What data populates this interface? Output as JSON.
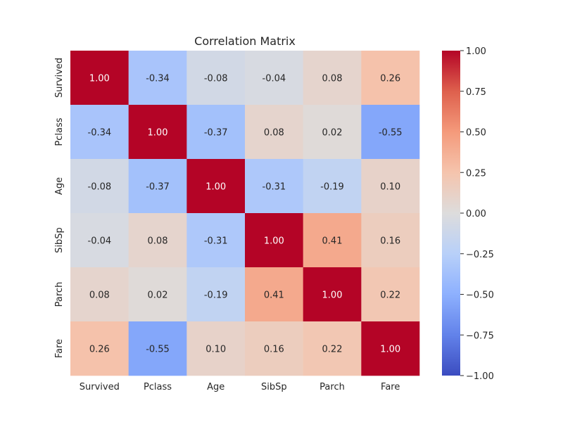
{
  "chart_data": {
    "type": "heatmap",
    "title": "Correlation Matrix",
    "x_labels": [
      "Survived",
      "Pclass",
      "Age",
      "SibSp",
      "Parch",
      "Fare"
    ],
    "y_labels": [
      "Survived",
      "Pclass",
      "Age",
      "SibSp",
      "Parch",
      "Fare"
    ],
    "values": [
      [
        1.0,
        -0.34,
        -0.08,
        -0.04,
        0.08,
        0.26
      ],
      [
        -0.34,
        1.0,
        -0.37,
        0.08,
        0.02,
        -0.55
      ],
      [
        -0.08,
        -0.37,
        1.0,
        -0.31,
        -0.19,
        0.1
      ],
      [
        -0.04,
        0.08,
        -0.31,
        1.0,
        0.41,
        0.16
      ],
      [
        0.08,
        0.02,
        -0.19,
        0.41,
        1.0,
        0.22
      ],
      [
        0.26,
        -0.55,
        0.1,
        0.16,
        0.22,
        1.0
      ]
    ],
    "value_labels": [
      [
        "1.00",
        "-0.34",
        "-0.08",
        "-0.04",
        "0.08",
        "0.26"
      ],
      [
        "-0.34",
        "1.00",
        "-0.37",
        "0.08",
        "0.02",
        "-0.55"
      ],
      [
        "-0.08",
        "-0.37",
        "1.00",
        "-0.31",
        "-0.19",
        "0.10"
      ],
      [
        "-0.04",
        "0.08",
        "-0.31",
        "1.00",
        "0.41",
        "0.16"
      ],
      [
        "0.08",
        "0.02",
        "-0.19",
        "0.41",
        "1.00",
        "0.22"
      ],
      [
        "0.26",
        "-0.55",
        "0.10",
        "0.16",
        "0.22",
        "1.00"
      ]
    ],
    "colormap": "coolwarm",
    "colorbar": {
      "vmin": -1.0,
      "vmax": 1.0,
      "ticks": [
        -1.0,
        -0.75,
        -0.5,
        -0.25,
        0.0,
        0.25,
        0.5,
        0.75,
        1.0
      ],
      "tick_labels": [
        "−1.00",
        "−0.75",
        "−0.50",
        "−0.25",
        "0.00",
        "0.25",
        "0.50",
        "0.75",
        "1.00"
      ]
    }
  }
}
